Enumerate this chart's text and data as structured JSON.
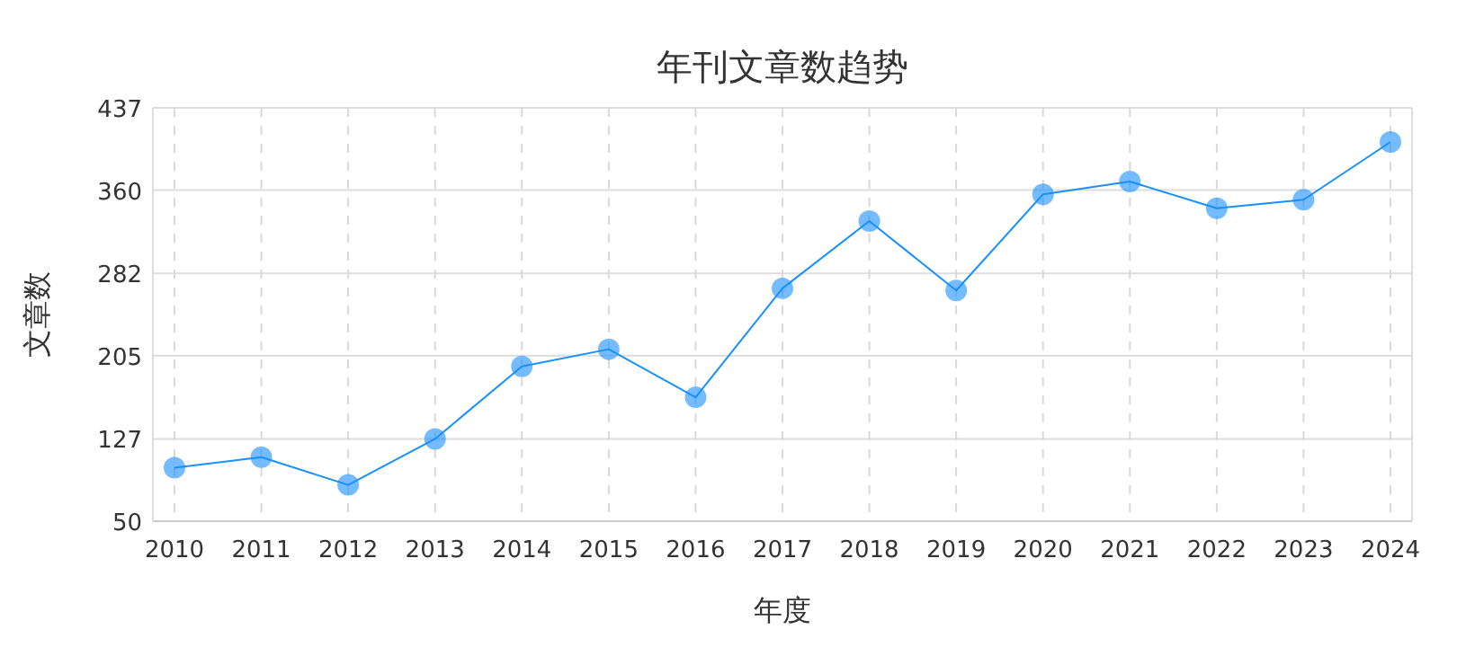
{
  "chart_data": {
    "type": "line",
    "title": "年刊文章数趋势",
    "xlabel": "年度",
    "ylabel": "文章数",
    "categories": [
      "2010",
      "2011",
      "2012",
      "2013",
      "2014",
      "2015",
      "2016",
      "2017",
      "2018",
      "2019",
      "2020",
      "2021",
      "2022",
      "2023",
      "2024"
    ],
    "series": [
      {
        "color": "#1890ff",
        "values": [
          100,
          110,
          84,
          127,
          195,
          211,
          166,
          268,
          331,
          266,
          356,
          368,
          343,
          351,
          405
        ]
      }
    ],
    "ylim": [
      50,
      437
    ],
    "yticks": [
      50,
      127,
      205,
      282,
      360,
      437
    ],
    "grid": true,
    "marker": "circle",
    "line_style": "solid"
  }
}
